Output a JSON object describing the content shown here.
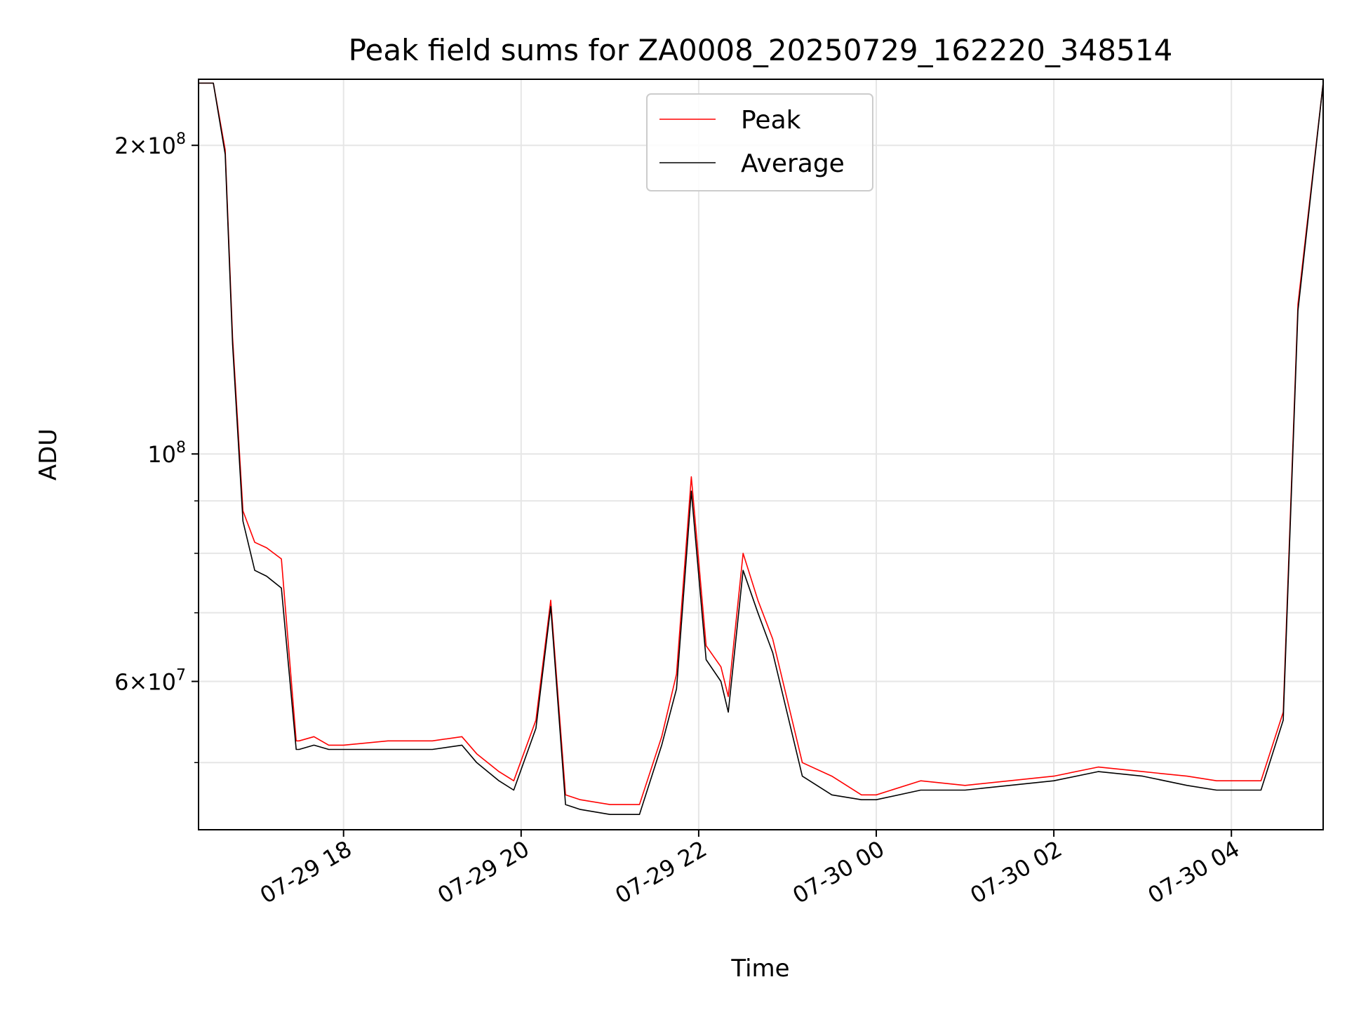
{
  "chart_data": {
    "type": "line",
    "title": "Peak field sums for ZA0008_20250729_162220_348514",
    "xlabel": "Time",
    "ylabel": "ADU",
    "y_scale": "log",
    "ylim": [
      43000000,
      232000000
    ],
    "xlim": [
      "07-29 16:22",
      "07-30 05:02"
    ],
    "grid": true,
    "legend_position": "top-center",
    "x_ticks": [
      {
        "value": "07-29 18:00",
        "label": "07-29 18"
      },
      {
        "value": "07-29 20:00",
        "label": "07-29 20"
      },
      {
        "value": "07-29 22:00",
        "label": "07-29 22"
      },
      {
        "value": "07-30 00:00",
        "label": "07-30 00"
      },
      {
        "value": "07-30 02:00",
        "label": "07-30 02"
      },
      {
        "value": "07-30 04:00",
        "label": "07-30 04"
      }
    ],
    "y_ticks": [
      {
        "value": 60000000,
        "base": "6",
        "exp": "7"
      },
      {
        "value": 100000000,
        "base": "",
        "exp": "8"
      },
      {
        "value": 200000000,
        "base": "2",
        "exp": "8"
      }
    ],
    "y_minor_ticks": [
      50000000,
      70000000,
      80000000,
      90000000
    ],
    "series": [
      {
        "name": "Peak",
        "color": "#ff0000",
        "x": [
          "07-29 16:22",
          "07-29 16:32",
          "07-29 16:40",
          "07-29 16:45",
          "07-29 16:52",
          "07-29 17:00",
          "07-29 17:08",
          "07-29 17:18",
          "07-29 17:28",
          "07-29 17:30",
          "07-29 17:40",
          "07-29 17:50",
          "07-29 18:00",
          "07-29 18:30",
          "07-29 19:00",
          "07-29 19:20",
          "07-29 19:30",
          "07-29 19:45",
          "07-29 19:55",
          "07-29 20:10",
          "07-29 20:20",
          "07-29 20:30",
          "07-29 20:40",
          "07-29 21:00",
          "07-29 21:20",
          "07-29 21:35",
          "07-29 21:45",
          "07-29 21:55",
          "07-29 22:05",
          "07-29 22:15",
          "07-29 22:20",
          "07-29 22:30",
          "07-29 22:40",
          "07-29 22:50",
          "07-29 23:10",
          "07-29 23:30",
          "07-29 23:50",
          "07-30 00:00",
          "07-30 00:30",
          "07-30 01:00",
          "07-30 01:30",
          "07-30 02:00",
          "07-30 02:30",
          "07-30 03:00",
          "07-30 03:30",
          "07-30 03:50",
          "07-30 04:05",
          "07-30 04:20",
          "07-30 04:35",
          "07-30 04:45",
          "07-30 05:02"
        ],
        "values": [
          230000000,
          230000000,
          198000000,
          130000000,
          88000000,
          82000000,
          81000000,
          79000000,
          52500000,
          52500000,
          53000000,
          52000000,
          52000000,
          52500000,
          52500000,
          53000000,
          51000000,
          49000000,
          48000000,
          55000000,
          72000000,
          46500000,
          46000000,
          45500000,
          45500000,
          53000000,
          61000000,
          95000000,
          65000000,
          62000000,
          58000000,
          80000000,
          72000000,
          66000000,
          50000000,
          48500000,
          46500000,
          46500000,
          48000000,
          47500000,
          48000000,
          48500000,
          49500000,
          49000000,
          48500000,
          48000000,
          48000000,
          48000000,
          56000000,
          140000000,
          230000000
        ]
      },
      {
        "name": "Average",
        "color": "#000000",
        "x": [
          "07-29 16:22",
          "07-29 16:32",
          "07-29 16:40",
          "07-29 16:45",
          "07-29 16:52",
          "07-29 17:00",
          "07-29 17:08",
          "07-29 17:18",
          "07-29 17:28",
          "07-29 17:30",
          "07-29 17:40",
          "07-29 17:50",
          "07-29 18:00",
          "07-29 18:30",
          "07-29 19:00",
          "07-29 19:20",
          "07-29 19:30",
          "07-29 19:45",
          "07-29 19:55",
          "07-29 20:10",
          "07-29 20:20",
          "07-29 20:30",
          "07-29 20:40",
          "07-29 21:00",
          "07-29 21:20",
          "07-29 21:35",
          "07-29 21:45",
          "07-29 21:55",
          "07-29 22:05",
          "07-29 22:15",
          "07-29 22:20",
          "07-29 22:30",
          "07-29 22:40",
          "07-29 22:50",
          "07-29 23:10",
          "07-29 23:30",
          "07-29 23:50",
          "07-30 00:00",
          "07-30 00:30",
          "07-30 01:00",
          "07-30 01:30",
          "07-30 02:00",
          "07-30 02:30",
          "07-30 03:00",
          "07-30 03:30",
          "07-30 03:50",
          "07-30 04:05",
          "07-30 04:20",
          "07-30 04:35",
          "07-30 04:45",
          "07-30 05:02"
        ],
        "values": [
          230000000,
          230000000,
          196000000,
          128000000,
          86000000,
          77000000,
          76000000,
          74000000,
          51500000,
          51500000,
          52000000,
          51500000,
          51500000,
          51500000,
          51500000,
          52000000,
          50000000,
          48000000,
          47000000,
          54000000,
          71000000,
          45500000,
          45000000,
          44500000,
          44500000,
          52000000,
          59000000,
          92000000,
          63000000,
          60000000,
          56000000,
          77000000,
          70000000,
          64000000,
          48500000,
          46500000,
          46000000,
          46000000,
          47000000,
          47000000,
          47500000,
          48000000,
          49000000,
          48500000,
          47500000,
          47000000,
          47000000,
          47000000,
          55000000,
          138000000,
          230000000
        ]
      }
    ]
  }
}
